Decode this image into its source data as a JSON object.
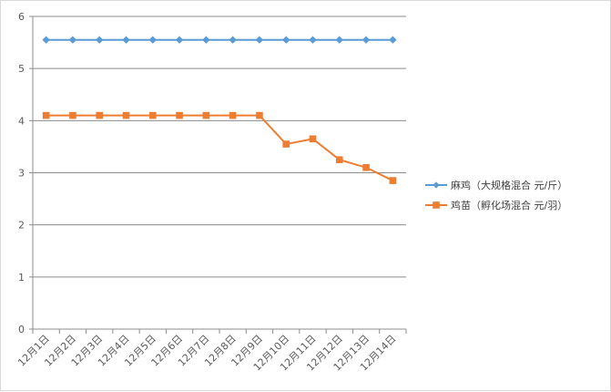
{
  "chart_data": {
    "type": "line",
    "title": "",
    "xlabel": "",
    "ylabel": "",
    "categories": [
      "12月1日",
      "12月2日",
      "12月3日",
      "12月4日",
      "12月5日",
      "12月6日",
      "12月7日",
      "12月8日",
      "12月9日",
      "12月10日",
      "12月11日",
      "12月12日",
      "12月13日",
      "12月14日"
    ],
    "ylim": [
      0,
      6
    ],
    "yticks": [
      "0",
      "1",
      "2",
      "3",
      "4",
      "5",
      "6"
    ],
    "grid": true,
    "legend_position": "right",
    "series": [
      {
        "name": "麻鸡（大规格混合 元/斤）",
        "color": "#5b9bd5",
        "marker": "diamond",
        "values": [
          5.55,
          5.55,
          5.55,
          5.55,
          5.55,
          5.55,
          5.55,
          5.55,
          5.55,
          5.55,
          5.55,
          5.55,
          5.55,
          5.55
        ]
      },
      {
        "name": "鸡苗（孵化场混合 元/羽）",
        "color": "#ed7d31",
        "marker": "square",
        "values": [
          4.1,
          4.1,
          4.1,
          4.1,
          4.1,
          4.1,
          4.1,
          4.1,
          4.1,
          3.55,
          3.65,
          3.25,
          3.1,
          2.85
        ]
      }
    ]
  }
}
